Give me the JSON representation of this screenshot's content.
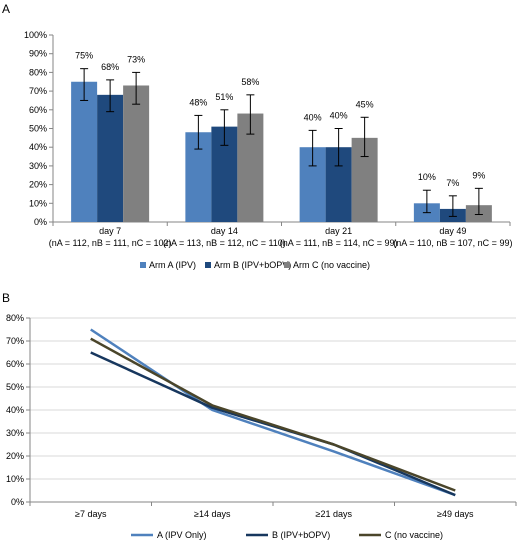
{
  "chart_data": [
    {
      "panel": "A",
      "type": "bar",
      "title": "",
      "xlabel": "",
      "ylabel": "",
      "ylim": [
        0,
        100
      ],
      "yticks": [
        "0%",
        "10%",
        "20%",
        "30%",
        "40%",
        "50%",
        "60%",
        "70%",
        "80%",
        "90%",
        "100%"
      ],
      "categories": [
        "day 7",
        "day 14",
        "day 21",
        "day 49"
      ],
      "category_sublabels": [
        "(nA = 112, nB = 111, nC = 102)",
        "(nA = 113, nB = 112, nC = 110)",
        "(nA = 111, nB = 114, nC = 99)",
        "(nA = 110, nB = 107, nC = 99)"
      ],
      "series": [
        {
          "name": "Arm A (IPV)",
          "color": "#4f81bd",
          "values": [
            75,
            48,
            40,
            10
          ],
          "labels": [
            "75%",
            "48%",
            "40%",
            "10%"
          ],
          "error_low": [
            65,
            39,
            30,
            5
          ],
          "error_high": [
            82,
            57,
            49,
            17
          ]
        },
        {
          "name": "Arm B (IPV+bOPV)",
          "color": "#1f497d",
          "values": [
            68,
            51,
            40,
            7
          ],
          "labels": [
            "68%",
            "51%",
            "40%",
            "7%"
          ],
          "error_low": [
            59,
            41,
            30,
            3
          ],
          "error_high": [
            76,
            60,
            50,
            14
          ]
        },
        {
          "name": "Arm C (no vaccine)",
          "color": "#808080",
          "values": [
            73,
            58,
            45,
            9
          ],
          "labels": [
            "73%",
            "58%",
            "45%",
            "9%"
          ],
          "error_low": [
            63,
            47,
            35,
            4
          ],
          "error_high": [
            80,
            68,
            56,
            18
          ]
        }
      ],
      "legend_position": "bottom",
      "grid": false
    },
    {
      "panel": "B",
      "type": "line",
      "title": "",
      "xlabel": "",
      "ylabel": "",
      "ylim": [
        0,
        80
      ],
      "yticks": [
        "0%",
        "10%",
        "20%",
        "30%",
        "40%",
        "50%",
        "60%",
        "70%",
        "80%"
      ],
      "categories": [
        "≥7 days",
        "≥14 days",
        "≥21 days",
        "≥49 days"
      ],
      "series": [
        {
          "name": "A (IPV Only)",
          "color": "#4f81bd",
          "values": [
            75,
            40,
            22,
            3
          ]
        },
        {
          "name": "B (IPV+bOPV)",
          "color": "#17375e",
          "values": [
            65,
            41,
            25,
            3
          ]
        },
        {
          "name": "C (no vaccine)",
          "color": "#4a452a",
          "values": [
            71,
            42,
            25,
            5
          ]
        }
      ],
      "legend_position": "bottom",
      "grid": true
    }
  ]
}
